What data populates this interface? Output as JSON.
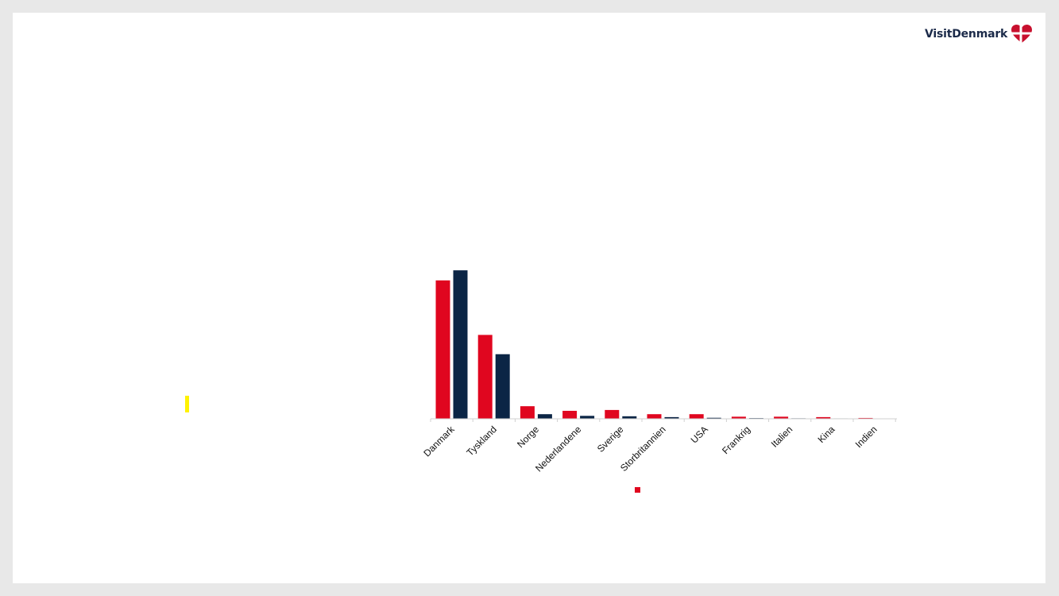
{
  "logo": {
    "text": "VisitDenmark",
    "icon": "heart-flag-icon"
  },
  "colors": {
    "series_1": "#e0061f",
    "series_2": "#0b2545",
    "marker": "#fff200"
  },
  "chart_data": {
    "type": "bar",
    "title": "",
    "xlabel": "",
    "ylabel": "",
    "grid": false,
    "categories": [
      "Danmark",
      "Tyskland",
      "Norge",
      "Nederlandene",
      "Sverige",
      "Storbritannien",
      "USA",
      "Frankrig",
      "Italien",
      "Kina",
      "Indien"
    ],
    "series": [
      {
        "values": [
          165,
          100,
          15,
          9.5,
          10.5,
          5.5,
          5.5,
          2.5,
          2.5,
          2,
          1
        ]
      },
      {
        "values": [
          177,
          77,
          5.5,
          3.5,
          3,
          2,
          1.2,
          0.8,
          0.6,
          0.5,
          0.4
        ]
      }
    ],
    "ylim": [
      0,
      180
    ],
    "legend": {
      "position": "bottom"
    }
  }
}
